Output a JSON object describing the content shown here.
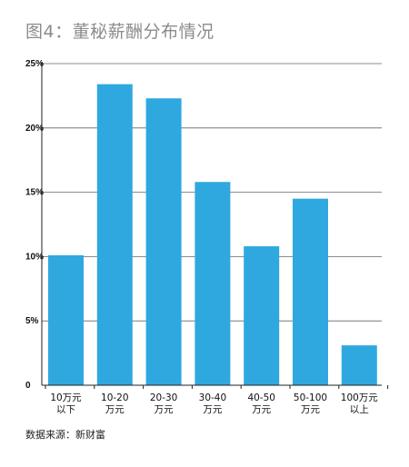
{
  "title": "图4：董秘薪酬分布情况",
  "source": "数据来源：新财富",
  "colors": {
    "bar": "#2fa8e0",
    "grid": "#666666",
    "axis": "#222222"
  },
  "chart_data": {
    "type": "bar",
    "title": "图4：董秘薪酬分布情况",
    "categories": [
      [
        "10万元",
        "以下"
      ],
      [
        "10-20",
        "万元"
      ],
      [
        "20-30",
        "万元"
      ],
      [
        "30-40",
        "万元"
      ],
      [
        "40-50",
        "万元"
      ],
      [
        "50-100",
        "万元"
      ],
      [
        "100万元",
        "以上"
      ]
    ],
    "values": [
      10.1,
      23.4,
      22.3,
      15.8,
      10.8,
      14.5,
      3.1
    ],
    "unit": "%",
    "yticks": [
      "0",
      "5%",
      "10%",
      "15%",
      "20%",
      "25%"
    ],
    "ylim": [
      0,
      25
    ],
    "grid": true,
    "xlabel": "",
    "ylabel": ""
  }
}
